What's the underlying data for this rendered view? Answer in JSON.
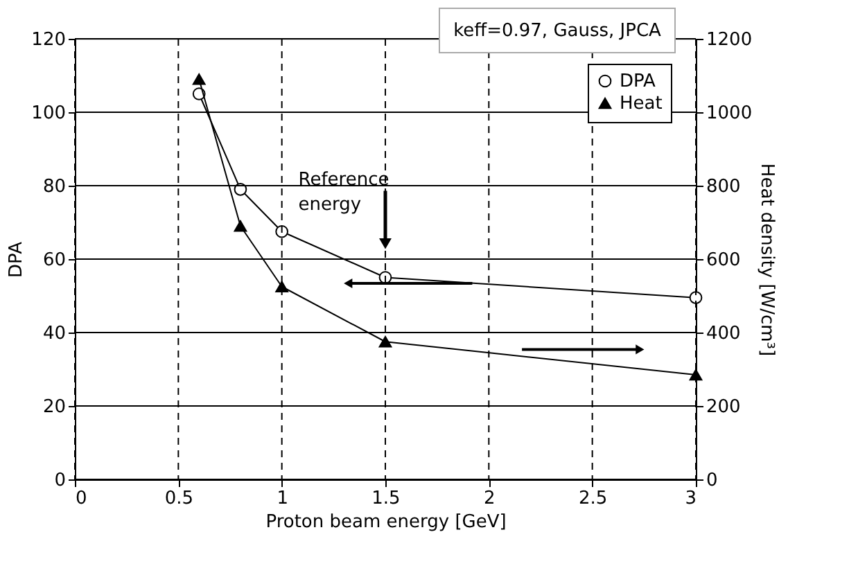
{
  "chart_data": {
    "type": "line",
    "xlabel": "Proton beam energy [GeV]",
    "ylabel": "DPA",
    "y2label": "Heat density [W/cm³]",
    "x": [
      0.6,
      0.8,
      1.0,
      1.5,
      3.0
    ],
    "series": [
      {
        "name": "DPA",
        "color": "#000000",
        "marker": "circle",
        "values": [
          105,
          79,
          67.5,
          55,
          49.5
        ]
      },
      {
        "name": "Heat",
        "color": "#000000",
        "marker": "triangle",
        "axis": "y2",
        "values": [
          1090,
          690,
          525,
          375,
          285
        ]
      }
    ],
    "xlim": [
      0,
      3
    ],
    "xticks": [
      0,
      0.5,
      1,
      1.5,
      2,
      2.5,
      3
    ],
    "ylim": [
      0,
      120
    ],
    "yticks": [
      0,
      20,
      40,
      60,
      80,
      100,
      120
    ],
    "y2lim": [
      0,
      1200
    ],
    "y2ticks": [
      0,
      200,
      400,
      600,
      800,
      1000,
      1200
    ],
    "grid": true,
    "legend": "top right",
    "line_style": "solid",
    "annotations": [
      "keff=0.97, Gauss, JPCA",
      "Reference energy"
    ]
  }
}
